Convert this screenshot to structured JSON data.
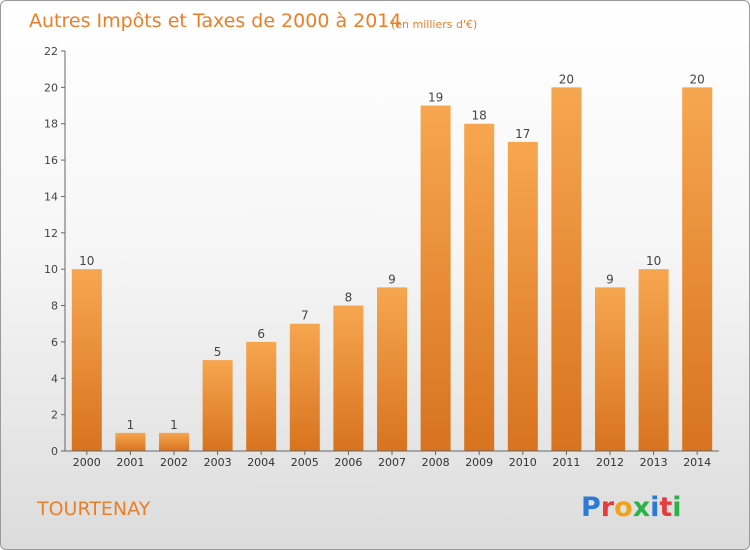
{
  "colors": {
    "accent": "#ea7f28",
    "bar_light": "#f7a650",
    "bar_dark": "#d8731f",
    "axis": "#666666"
  },
  "footer": {
    "commune": "TOURTENAY",
    "logo_letters": [
      "P",
      "r",
      "o",
      "x",
      "i",
      "t",
      "i"
    ],
    "logo_colors": [
      "#2b7bd6",
      "#e63c3c",
      "#f0a21b",
      "#2bb34a",
      "#2b7bd6",
      "#e63c3c",
      "#2bb34a"
    ]
  },
  "chart_data": {
    "type": "bar",
    "title": "Autres Impôts et Taxes de 2000 à 2014",
    "subtitle": "(en milliers d'€)",
    "categories": [
      "2000",
      "2001",
      "2002",
      "2003",
      "2004",
      "2005",
      "2006",
      "2007",
      "2008",
      "2009",
      "2010",
      "2011",
      "2012",
      "2013",
      "2014"
    ],
    "values": [
      10,
      1,
      1,
      5,
      6,
      7,
      8,
      9,
      19,
      18,
      17,
      20,
      9,
      10,
      20
    ],
    "ylim": [
      0,
      22
    ],
    "yticks": [
      0,
      2,
      4,
      6,
      8,
      10,
      12,
      14,
      16,
      18,
      20,
      22
    ],
    "xlabel": "",
    "ylabel": "",
    "grid": false,
    "data_labels": true
  }
}
